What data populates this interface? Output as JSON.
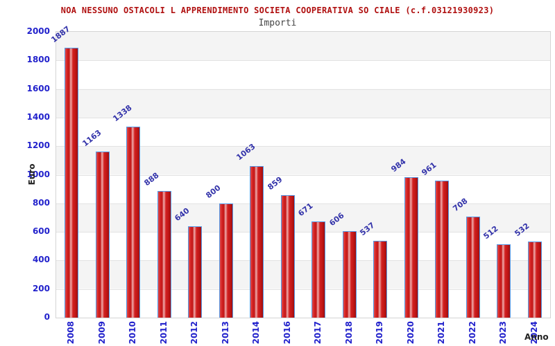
{
  "header": {
    "title": "NOA NESSUNO OSTACOLI L APPRENDIMENTO SOCIETA COOPERATIVA SO CIALE (c.f.03121930923)",
    "subtitle": "Importi"
  },
  "chart_data": {
    "type": "bar",
    "title": "NOA NESSUNO OSTACOLI L APPRENDIMENTO SOCIETA COOPERATIVA SO CIALE (c.f.03121930923)",
    "subtitle": "Importi",
    "xlabel": "Anno",
    "ylabel": "Euro",
    "categories": [
      "2008",
      "2009",
      "2010",
      "2011",
      "2012",
      "2013",
      "2014",
      "2016",
      "2017",
      "2018",
      "2019",
      "2020",
      "2021",
      "2022",
      "2023",
      "2024"
    ],
    "values": [
      1887,
      1163,
      1338,
      888,
      640,
      800,
      1063,
      859,
      671,
      606,
      537,
      984,
      961,
      708,
      512,
      532
    ],
    "ylim": [
      0,
      2000
    ],
    "ytick_step": 200,
    "grid": "horizontal-bands",
    "legend_position": "none"
  },
  "colors": {
    "title": "#b01010",
    "subtitle": "#444444",
    "axis_tick": "#2222cc",
    "value_label": "#3333aa",
    "axis_title": "#222222",
    "bar_fill": "#d42222",
    "bar_border": "#539ae8",
    "band_gray": "#f4f4f4",
    "gridline": "#e2e2e2"
  }
}
